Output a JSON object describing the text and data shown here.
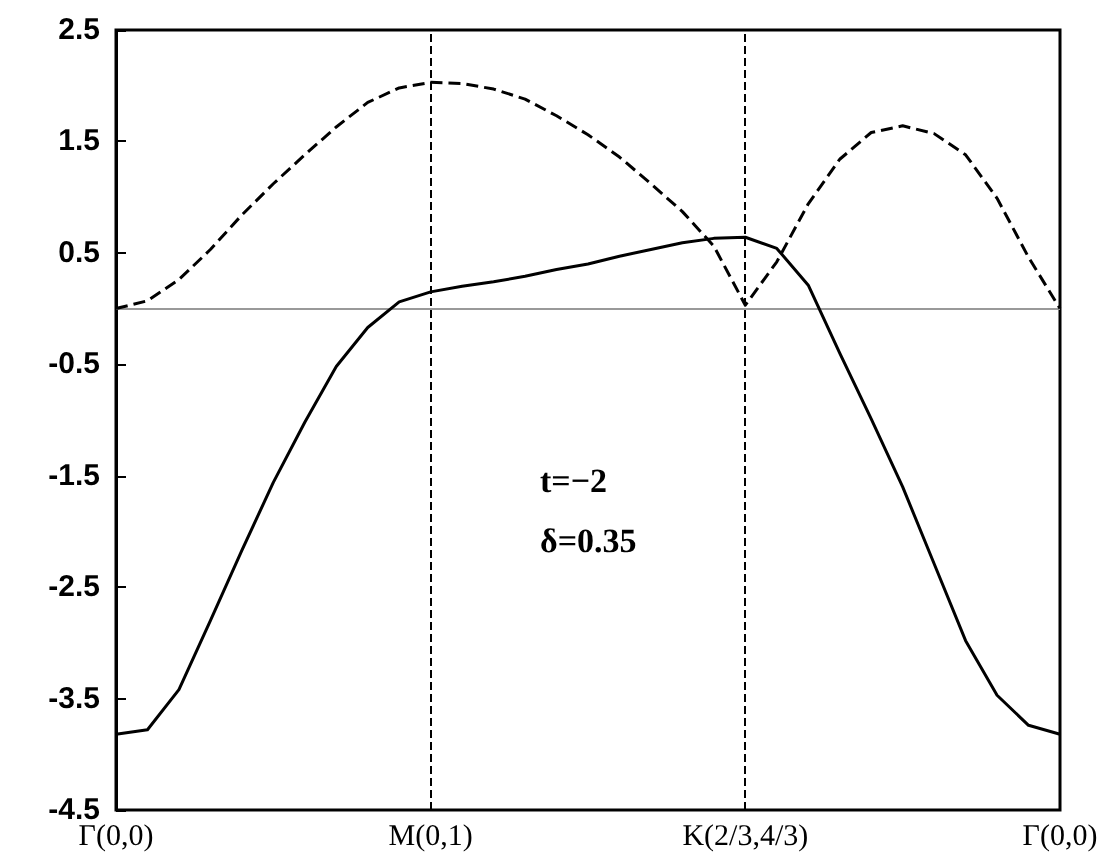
{
  "chart_data": {
    "type": "line",
    "categories": [
      "Γ(0,0)",
      null,
      null,
      null,
      null,
      null,
      null,
      null,
      null,
      null,
      "M(0,1)",
      null,
      null,
      null,
      null,
      null,
      null,
      null,
      null,
      null,
      "K(2/3,4/3)",
      null,
      null,
      null,
      null,
      null,
      null,
      null,
      null,
      null,
      "Γ(0,0)"
    ],
    "ylim": [
      -4.5,
      2.5
    ],
    "yticks": [
      -4.5,
      -3.5,
      -2.5,
      -1.5,
      -0.5,
      0.5,
      1.5,
      2.5
    ],
    "grid": false,
    "marker": "none",
    "series": [
      {
        "color": "#000000",
        "line_style": "dashed",
        "values": [
          0,
          0.07,
          0.26,
          0.53,
          0.84,
          1.12,
          1.38,
          1.63,
          1.85,
          1.98,
          2.03,
          2.02,
          1.97,
          1.88,
          1.73,
          1.56,
          1.36,
          1.12,
          0.87,
          0.56,
          0.03,
          0.42,
          0.94,
          1.34,
          1.58,
          1.64,
          1.57,
          1.38,
          0.99,
          0.46,
          0
        ]
      },
      {
        "color": "#000000",
        "line_style": "solid",
        "values": [
          -3.82,
          -3.78,
          -3.42,
          -2.8,
          -2.17,
          -1.56,
          -1.02,
          -0.52,
          -0.17,
          0.06,
          0.15,
          0.2,
          0.24,
          0.29,
          0.35,
          0.4,
          0.47,
          0.53,
          0.59,
          0.63,
          0.64,
          0.54,
          0.21,
          -0.4,
          -0.99,
          -1.6,
          -2.29,
          -2.98,
          -3.47,
          -3.74,
          -3.82
        ]
      }
    ],
    "ref_lines": [
      {
        "axis": "y",
        "value": 0,
        "color": "#999999",
        "line_style": "solid"
      },
      {
        "axis": "x",
        "value": "M(0,1)",
        "color": "#000000",
        "line_style": "dashed"
      },
      {
        "axis": "x",
        "value": "K(2/3,4/3)",
        "color": "#000000",
        "line_style": "dashed"
      }
    ],
    "annotations": [
      "t=−2",
      "δ=0.35"
    ]
  }
}
